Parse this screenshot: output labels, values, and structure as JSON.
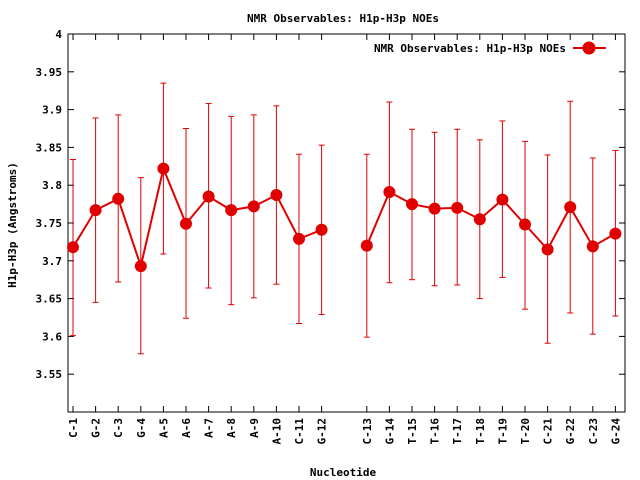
{
  "chart_data": {
    "type": "line",
    "title": "NMR Observables: H1p-H3p NOEs",
    "xlabel": "Nucleotide",
    "ylabel": "H1p-H3p (Angstroms)",
    "ylim": [
      3.5,
      4.0
    ],
    "yticks": [
      "3.55",
      "3.6",
      "3.65",
      "3.7",
      "3.75",
      "3.8",
      "3.85",
      "3.9",
      "3.95",
      "4"
    ],
    "legend": {
      "position": "top-right",
      "label": "NMR Observables: H1p-H3p NOEs"
    },
    "color": "#e00000",
    "categories": [
      "C-1",
      "G-2",
      "C-3",
      "G-4",
      "A-5",
      "A-6",
      "A-7",
      "A-8",
      "A-9",
      "A-10",
      "C-11",
      "G-12",
      "C-13",
      "G-14",
      "T-15",
      "T-16",
      "T-17",
      "T-18",
      "T-19",
      "T-20",
      "C-21",
      "G-22",
      "C-23",
      "G-24"
    ],
    "segments": [
      [
        0,
        11
      ],
      [
        12,
        23
      ]
    ],
    "series": [
      {
        "name": "NMR Observables: H1p-H3p NOEs",
        "values": [
          3.718,
          3.767,
          3.782,
          3.693,
          3.822,
          3.749,
          3.785,
          3.767,
          3.772,
          3.787,
          3.729,
          3.741,
          3.72,
          3.791,
          3.775,
          3.769,
          3.77,
          3.755,
          3.781,
          3.748,
          3.715,
          3.771,
          3.719,
          3.736
        ],
        "error_low": [
          3.601,
          3.645,
          3.672,
          3.577,
          3.709,
          3.624,
          3.664,
          3.642,
          3.651,
          3.669,
          3.617,
          3.629,
          3.599,
          3.671,
          3.675,
          3.667,
          3.668,
          3.65,
          3.678,
          3.636,
          3.591,
          3.631,
          3.603,
          3.627
        ],
        "error_high": [
          3.834,
          3.889,
          3.893,
          3.81,
          3.935,
          3.875,
          3.908,
          3.891,
          3.893,
          3.905,
          3.841,
          3.853,
          3.841,
          3.91,
          3.874,
          3.87,
          3.874,
          3.86,
          3.885,
          3.858,
          3.84,
          3.911,
          3.836,
          3.846
        ]
      }
    ]
  }
}
